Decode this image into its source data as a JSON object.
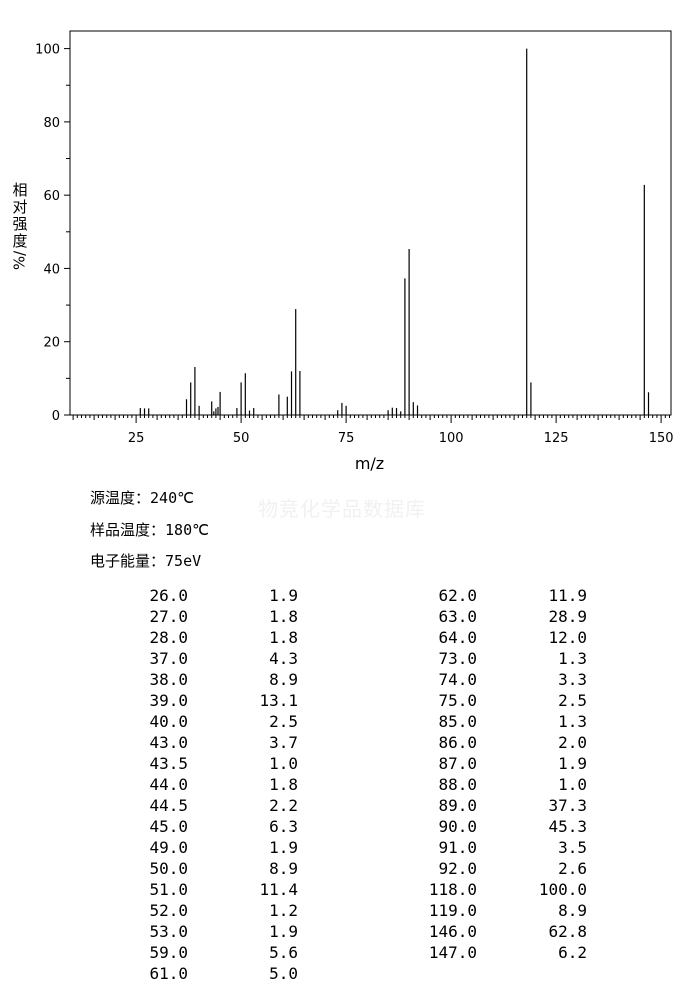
{
  "chart_data": {
    "type": "bar",
    "xlabel": "m/z",
    "ylabel_chars": [
      "相",
      "对",
      "强",
      "度",
      "%/"
    ],
    "xlim": [
      8,
      152
    ],
    "ylim": [
      0,
      105
    ],
    "x_ticks": [
      25,
      50,
      75,
      100,
      125,
      150
    ],
    "y_ticks": [
      0,
      20,
      40,
      60,
      80,
      100
    ],
    "peaks": [
      {
        "mz": 26.0,
        "intensity": 1.9
      },
      {
        "mz": 27.0,
        "intensity": 1.8
      },
      {
        "mz": 28.0,
        "intensity": 1.8
      },
      {
        "mz": 37.0,
        "intensity": 4.3
      },
      {
        "mz": 38.0,
        "intensity": 8.9
      },
      {
        "mz": 39.0,
        "intensity": 13.1
      },
      {
        "mz": 40.0,
        "intensity": 2.5
      },
      {
        "mz": 43.0,
        "intensity": 3.7
      },
      {
        "mz": 43.5,
        "intensity": 1.0
      },
      {
        "mz": 44.0,
        "intensity": 1.8
      },
      {
        "mz": 44.5,
        "intensity": 2.2
      },
      {
        "mz": 45.0,
        "intensity": 6.3
      },
      {
        "mz": 49.0,
        "intensity": 1.9
      },
      {
        "mz": 50.0,
        "intensity": 8.9
      },
      {
        "mz": 51.0,
        "intensity": 11.4
      },
      {
        "mz": 52.0,
        "intensity": 1.2
      },
      {
        "mz": 53.0,
        "intensity": 1.9
      },
      {
        "mz": 59.0,
        "intensity": 5.6
      },
      {
        "mz": 61.0,
        "intensity": 5.0
      },
      {
        "mz": 62.0,
        "intensity": 11.9
      },
      {
        "mz": 63.0,
        "intensity": 28.9
      },
      {
        "mz": 64.0,
        "intensity": 12.0
      },
      {
        "mz": 73.0,
        "intensity": 1.3
      },
      {
        "mz": 74.0,
        "intensity": 3.3
      },
      {
        "mz": 75.0,
        "intensity": 2.5
      },
      {
        "mz": 85.0,
        "intensity": 1.3
      },
      {
        "mz": 86.0,
        "intensity": 2.0
      },
      {
        "mz": 87.0,
        "intensity": 1.9
      },
      {
        "mz": 88.0,
        "intensity": 1.0
      },
      {
        "mz": 89.0,
        "intensity": 37.3
      },
      {
        "mz": 90.0,
        "intensity": 45.3
      },
      {
        "mz": 91.0,
        "intensity": 3.5
      },
      {
        "mz": 92.0,
        "intensity": 2.6
      },
      {
        "mz": 118.0,
        "intensity": 100.0
      },
      {
        "mz": 119.0,
        "intensity": 8.9
      },
      {
        "mz": 146.0,
        "intensity": 62.8
      },
      {
        "mz": 147.0,
        "intensity": 6.2
      }
    ]
  },
  "conditions": [
    {
      "label": "源温度：",
      "value": "240℃"
    },
    {
      "label": "样品温度：",
      "value": "180℃"
    },
    {
      "label": "电子能量：",
      "value": "75eV"
    }
  ],
  "watermark": "物竞化学品数据库",
  "peak_table": {
    "left": [
      [
        "26.0",
        "1.9"
      ],
      [
        "27.0",
        "1.8"
      ],
      [
        "28.0",
        "1.8"
      ],
      [
        "37.0",
        "4.3"
      ],
      [
        "38.0",
        "8.9"
      ],
      [
        "39.0",
        "13.1"
      ],
      [
        "40.0",
        "2.5"
      ],
      [
        "43.0",
        "3.7"
      ],
      [
        "43.5",
        "1.0"
      ],
      [
        "44.0",
        "1.8"
      ],
      [
        "44.5",
        "2.2"
      ],
      [
        "45.0",
        "6.3"
      ],
      [
        "49.0",
        "1.9"
      ],
      [
        "50.0",
        "8.9"
      ],
      [
        "51.0",
        "11.4"
      ],
      [
        "52.0",
        "1.2"
      ],
      [
        "53.0",
        "1.9"
      ],
      [
        "59.0",
        "5.6"
      ],
      [
        "61.0",
        "5.0"
      ]
    ],
    "right": [
      [
        "62.0",
        "11.9"
      ],
      [
        "63.0",
        "28.9"
      ],
      [
        "64.0",
        "12.0"
      ],
      [
        "73.0",
        "1.3"
      ],
      [
        "74.0",
        "3.3"
      ],
      [
        "75.0",
        "2.5"
      ],
      [
        "85.0",
        "1.3"
      ],
      [
        "86.0",
        "2.0"
      ],
      [
        "87.0",
        "1.9"
      ],
      [
        "88.0",
        "1.0"
      ],
      [
        "89.0",
        "37.3"
      ],
      [
        "90.0",
        "45.3"
      ],
      [
        "91.0",
        "3.5"
      ],
      [
        "92.0",
        "2.6"
      ],
      [
        "118.0",
        "100.0"
      ],
      [
        "119.0",
        "8.9"
      ],
      [
        "146.0",
        "62.8"
      ],
      [
        "147.0",
        "6.2"
      ]
    ]
  }
}
